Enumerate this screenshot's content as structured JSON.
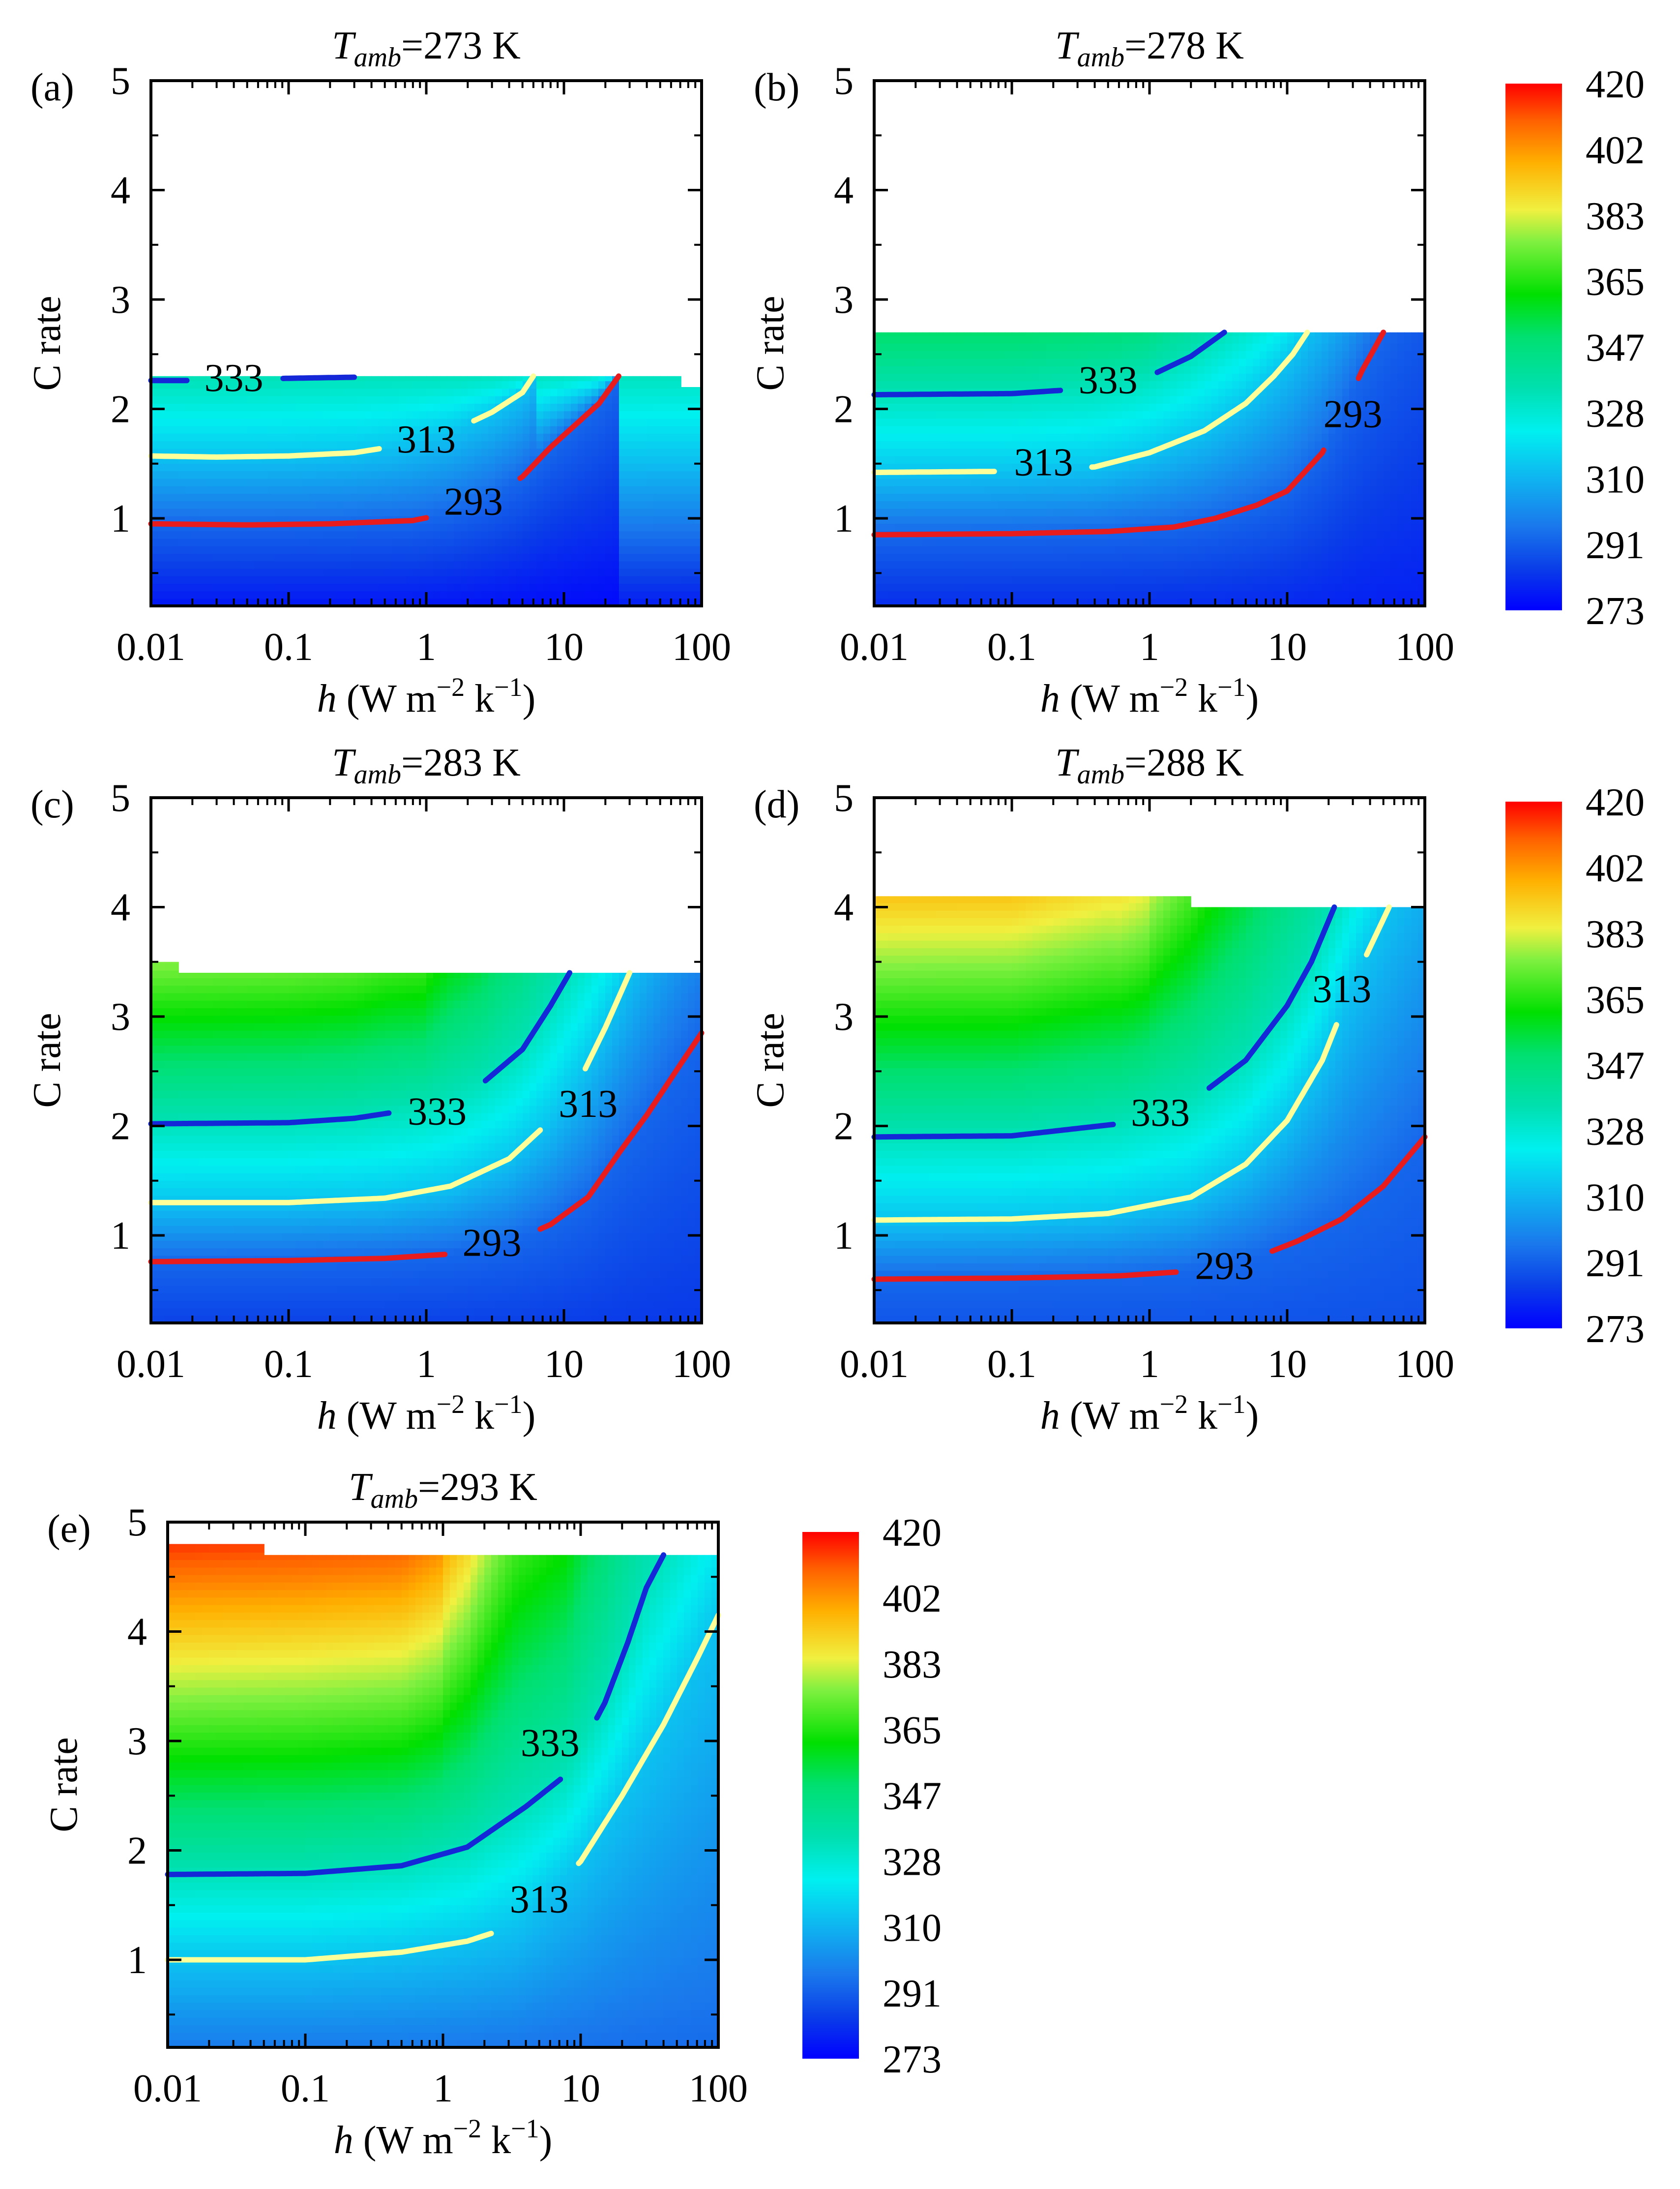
{
  "figure": {
    "colorbar": {
      "label_values": [
        "420",
        "402",
        "383",
        "365",
        "347",
        "328",
        "310",
        "291",
        "273"
      ]
    },
    "axis_common": {
      "xlabel_italic": "h",
      "xlabel_rest": " (W m",
      "xlabel_exp1": "−2",
      "xlabel_mid": " k",
      "xlabel_exp2": "−1",
      "xlabel_end": ")",
      "ylabel": "C rate",
      "x_ticks": [
        "0.01",
        "0.1",
        "1",
        "10",
        "100"
      ],
      "y_ticks": [
        "1",
        "2",
        "3",
        "4",
        "5"
      ]
    }
  },
  "chart_data": [
    {
      "type": "contour",
      "panel": "(a)",
      "title_prefix": "T",
      "title_sub": "amb",
      "title_suffix": "=273 K",
      "xscale": "log",
      "xlim": [
        0.01,
        100
      ],
      "ylim": [
        0.2,
        5
      ],
      "colorscale_range": [
        273,
        420
      ],
      "max_c_rate": [
        [
          0.01,
          2.3
        ],
        [
          70,
          2.3
        ],
        [
          70,
          2.2
        ],
        [
          100,
          2.2
        ]
      ],
      "contours": [
        {
          "level": 333,
          "label": "333",
          "color": "#1428d8",
          "points": [
            [
              0.01,
              2.26
            ],
            [
              0.02,
              2.26
            ],
            [
              0.05,
              2.27
            ],
            [
              0.1,
              2.28
            ],
            [
              0.3,
              2.29
            ]
          ],
          "label_pos": [
            0.04,
            2.28
          ]
        },
        {
          "level": 313,
          "label": "313",
          "color": "#ffff99",
          "points": [
            [
              0.01,
              1.57
            ],
            [
              0.03,
              1.56
            ],
            [
              0.1,
              1.57
            ],
            [
              0.3,
              1.6
            ],
            [
              0.6,
              1.66
            ],
            [
              1.5,
              1.79
            ],
            [
              3,
              1.97
            ],
            [
              5,
              2.15
            ],
            [
              6,
              2.3
            ]
          ],
          "label_pos": [
            1.0,
            1.72
          ]
        },
        {
          "level": 293,
          "label": "293",
          "color": "#e81c1c",
          "points": [
            [
              0.01,
              0.95
            ],
            [
              0.05,
              0.94
            ],
            [
              0.2,
              0.95
            ],
            [
              0.8,
              0.98
            ],
            [
              1.5,
              1.05
            ],
            [
              3,
              1.2
            ],
            [
              5,
              1.38
            ],
            [
              8,
              1.65
            ],
            [
              12,
              1.85
            ],
            [
              18,
              2.05
            ],
            [
              25,
              2.3
            ]
          ],
          "label_pos": [
            2.2,
            1.15
          ]
        }
      ]
    },
    {
      "type": "contour",
      "panel": "(b)",
      "title_prefix": "T",
      "title_sub": "amb",
      "title_suffix": "=278 K",
      "xscale": "log",
      "xlim": [
        0.01,
        100
      ],
      "ylim": [
        0.2,
        5
      ],
      "colorscale_range": [
        273,
        420
      ],
      "max_c_rate": [
        [
          0.01,
          2.7
        ],
        [
          100,
          2.7
        ]
      ],
      "contours": [
        {
          "level": 333,
          "label": "333",
          "color": "#1428d8",
          "points": [
            [
              0.01,
              2.13
            ],
            [
              0.1,
              2.14
            ],
            [
              0.3,
              2.18
            ],
            [
              0.6,
              2.23
            ],
            [
              1.0,
              2.3
            ],
            [
              2,
              2.48
            ],
            [
              3.5,
              2.7
            ]
          ],
          "label_pos": [
            0.5,
            2.26
          ]
        },
        {
          "level": 313,
          "label": "313",
          "color": "#ffff99",
          "points": [
            [
              0.01,
              1.42
            ],
            [
              0.1,
              1.43
            ],
            [
              0.4,
              1.47
            ],
            [
              1,
              1.6
            ],
            [
              2.5,
              1.8
            ],
            [
              5,
              2.05
            ],
            [
              8,
              2.3
            ],
            [
              11,
              2.5
            ],
            [
              14,
              2.7
            ]
          ],
          "label_pos": [
            0.17,
            1.51
          ]
        },
        {
          "level": 293,
          "label": "293",
          "color": "#e81c1c",
          "points": [
            [
              0.01,
              0.85
            ],
            [
              0.1,
              0.86
            ],
            [
              0.5,
              0.88
            ],
            [
              1.5,
              0.92
            ],
            [
              3,
              1.0
            ],
            [
              6,
              1.12
            ],
            [
              10,
              1.25
            ],
            [
              14,
              1.45
            ],
            [
              18,
              1.6
            ],
            [
              25,
              1.95
            ],
            [
              35,
              2.35
            ],
            [
              50,
              2.7
            ]
          ],
          "label_pos": [
            30,
            1.95
          ]
        }
      ]
    },
    {
      "type": "contour",
      "panel": "(c)",
      "title_prefix": "T",
      "title_sub": "amb",
      "title_suffix": "=283 K",
      "xscale": "log",
      "xlim": [
        0.01,
        100
      ],
      "ylim": [
        0.2,
        5
      ],
      "colorscale_range": [
        273,
        420
      ],
      "max_c_rate": [
        [
          0.01,
          3.5
        ],
        [
          0.015,
          3.5
        ],
        [
          0.015,
          3.4
        ],
        [
          100,
          3.4
        ]
      ],
      "contours": [
        {
          "level": 333,
          "label": "333",
          "color": "#1428d8",
          "points": [
            [
              0.01,
              2.02
            ],
            [
              0.1,
              2.03
            ],
            [
              0.3,
              2.07
            ],
            [
              1,
              2.17
            ],
            [
              2.5,
              2.38
            ],
            [
              5,
              2.7
            ],
            [
              8,
              3.1
            ],
            [
              11,
              3.4
            ]
          ],
          "label_pos": [
            1.2,
            2.13
          ]
        },
        {
          "level": 313,
          "label": "313",
          "color": "#ffff99",
          "points": [
            [
              0.01,
              1.3
            ],
            [
              0.1,
              1.3
            ],
            [
              0.5,
              1.34
            ],
            [
              1.5,
              1.45
            ],
            [
              4,
              1.7
            ],
            [
              8,
              2.05
            ],
            [
              14,
              2.5
            ],
            [
              20,
              2.9
            ],
            [
              30,
              3.4
            ]
          ],
          "label_pos": [
            15,
            2.2
          ]
        },
        {
          "level": 293,
          "label": "293",
          "color": "#e81c1c",
          "points": [
            [
              0.01,
              0.76
            ],
            [
              0.1,
              0.77
            ],
            [
              0.5,
              0.79
            ],
            [
              1.5,
              0.83
            ],
            [
              4,
              0.93
            ],
            [
              8,
              1.1
            ],
            [
              15,
              1.35
            ],
            [
              25,
              1.75
            ],
            [
              40,
              2.1
            ],
            [
              65,
              2.5
            ],
            [
              100,
              2.85
            ]
          ],
          "label_pos": [
            3,
            0.93
          ]
        }
      ]
    },
    {
      "type": "contour",
      "panel": "(d)",
      "title_prefix": "T",
      "title_sub": "amb",
      "title_suffix": "=288 K",
      "xscale": "log",
      "xlim": [
        0.01,
        100
      ],
      "ylim": [
        0.2,
        5
      ],
      "colorscale_range": [
        273,
        420
      ],
      "max_c_rate": [
        [
          0.01,
          4.1
        ],
        [
          2,
          4.1
        ],
        [
          2,
          4.0
        ],
        [
          100,
          4.0
        ]
      ],
      "contours": [
        {
          "level": 333,
          "label": "333",
          "color": "#1428d8",
          "points": [
            [
              0.01,
              1.9
            ],
            [
              0.1,
              1.91
            ],
            [
              0.6,
              2.02
            ],
            [
              2,
              2.22
            ],
            [
              5,
              2.6
            ],
            [
              10,
              3.1
            ],
            [
              15,
              3.5
            ],
            [
              22,
              4.0
            ]
          ],
          "label_pos": [
            1.2,
            2.12
          ]
        },
        {
          "level": 313,
          "label": "313",
          "color": "#ffff99",
          "points": [
            [
              0.01,
              1.14
            ],
            [
              0.1,
              1.15
            ],
            [
              0.5,
              1.2
            ],
            [
              2,
              1.35
            ],
            [
              5,
              1.65
            ],
            [
              10,
              2.05
            ],
            [
              18,
              2.6
            ],
            [
              30,
              3.3
            ],
            [
              55,
              4.0
            ]
          ],
          "label_pos": [
            25,
            3.25
          ]
        },
        {
          "level": 293,
          "label": "293",
          "color": "#e81c1c",
          "points": [
            [
              0.01,
              0.6
            ],
            [
              0.1,
              0.61
            ],
            [
              0.6,
              0.63
            ],
            [
              1.8,
              0.67
            ],
            [
              6,
              0.8
            ],
            [
              12,
              0.95
            ],
            [
              25,
              1.15
            ],
            [
              50,
              1.45
            ],
            [
              100,
              1.9
            ]
          ],
          "label_pos": [
            3.5,
            0.72
          ]
        }
      ]
    },
    {
      "type": "contour",
      "panel": "(e)",
      "title_prefix": "T",
      "title_sub": "amb",
      "title_suffix": "=293 K",
      "xscale": "log",
      "xlim": [
        0.01,
        100
      ],
      "ylim": [
        0.2,
        5
      ],
      "colorscale_range": [
        273,
        420
      ],
      "max_c_rate": [
        [
          0.01,
          4.8
        ],
        [
          0.05,
          4.8
        ],
        [
          0.05,
          4.7
        ],
        [
          100,
          4.7
        ]
      ],
      "contours": [
        {
          "level": 333,
          "label": "333",
          "color": "#1428d8",
          "points": [
            [
              0.01,
              1.78
            ],
            [
              0.1,
              1.79
            ],
            [
              0.5,
              1.86
            ],
            [
              1.5,
              2.03
            ],
            [
              4,
              2.4
            ],
            [
              8,
              2.7
            ],
            [
              15,
              3.35
            ],
            [
              22,
              3.9
            ],
            [
              30,
              4.4
            ],
            [
              40,
              4.7
            ]
          ],
          "label_pos": [
            6,
            2.98
          ]
        },
        {
          "level": 313,
          "label": "313",
          "color": "#ffff99",
          "points": [
            [
              0.01,
              1.0
            ],
            [
              0.1,
              1.0
            ],
            [
              0.5,
              1.07
            ],
            [
              1.5,
              1.17
            ],
            [
              3.5,
              1.32
            ],
            [
              10,
              1.9
            ],
            [
              20,
              2.5
            ],
            [
              40,
              3.15
            ],
            [
              70,
              3.75
            ],
            [
              100,
              4.15
            ]
          ],
          "label_pos": [
            5,
            1.55
          ]
        }
      ]
    }
  ]
}
